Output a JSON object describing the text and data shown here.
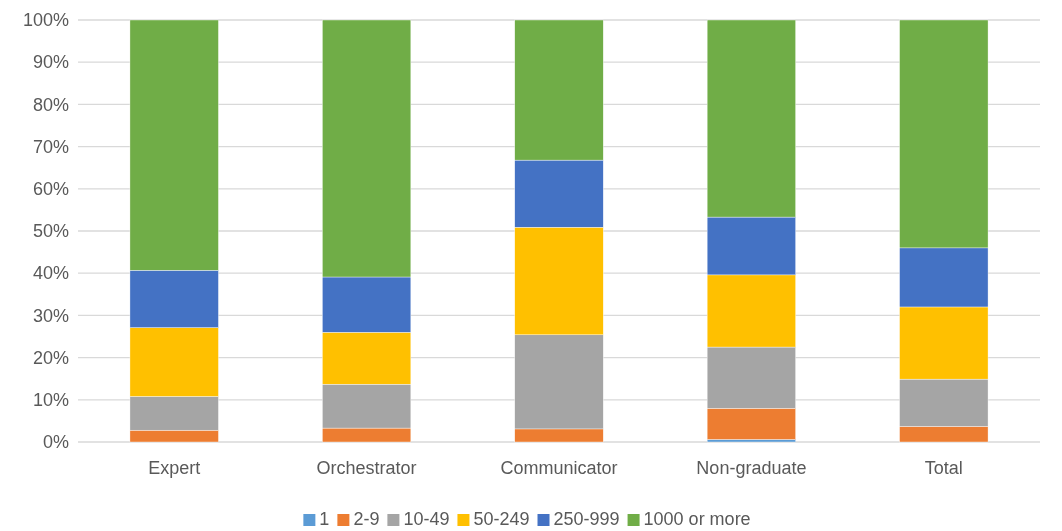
{
  "chart_data": {
    "type": "bar",
    "stacked": true,
    "categories": [
      "Expert",
      "Orchestrator",
      "Communicator",
      "Non-graduate",
      "Total"
    ],
    "series": [
      {
        "name": "1",
        "color": "#5b9bd5",
        "values": [
          0,
          0,
          0,
          0.6,
          0
        ]
      },
      {
        "name": "2-9",
        "color": "#ed7d31",
        "values": [
          2.8,
          3.3,
          3.1,
          7.4,
          3.7
        ]
      },
      {
        "name": "10-49",
        "color": "#a5a5a5",
        "values": [
          8.0,
          10.4,
          22.3,
          14.5,
          11.2
        ]
      },
      {
        "name": "50-249",
        "color": "#ffc000",
        "values": [
          16.3,
          12.3,
          25.5,
          17.1,
          17.1
        ]
      },
      {
        "name": "250-999",
        "color": "#4472c4",
        "values": [
          13.6,
          13.1,
          15.9,
          13.7,
          14.0
        ]
      },
      {
        "name": "1000 or more",
        "color": "#70ad47",
        "values": [
          59.3,
          60.9,
          33.2,
          46.7,
          54.0
        ]
      }
    ],
    "ylim": [
      0,
      100
    ],
    "yticks": [
      {
        "value": 0,
        "label": "0%"
      },
      {
        "value": 10,
        "label": "10%"
      },
      {
        "value": 20,
        "label": "20%"
      },
      {
        "value": 30,
        "label": "30%"
      },
      {
        "value": 40,
        "label": "40%"
      },
      {
        "value": 50,
        "label": "50%"
      },
      {
        "value": 60,
        "label": "60%"
      },
      {
        "value": 70,
        "label": "70%"
      },
      {
        "value": 80,
        "label": "80%"
      },
      {
        "value": 90,
        "label": "90%"
      },
      {
        "value": 100,
        "label": "100%"
      }
    ],
    "grid": "y",
    "legend": "bottom"
  }
}
